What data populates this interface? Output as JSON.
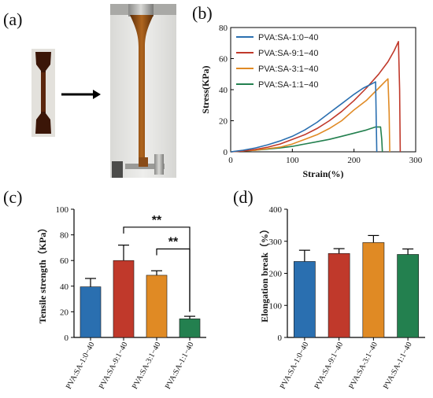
{
  "colors": {
    "blue": "#2a6fb0",
    "red": "#c0392b",
    "orange": "#e08a24",
    "green": "#23804f"
  },
  "panels": {
    "a": "(a)",
    "b": "(b)",
    "c": "(c)",
    "d": "(d)"
  },
  "chart_data": [
    {
      "panel": "(b)",
      "type": "line",
      "xlabel": "Strain(%)",
      "ylabel": "Stress(KPa)",
      "xlim": [
        0,
        300
      ],
      "ylim": [
        0,
        80
      ],
      "xticks": [
        "0",
        "100",
        "200",
        "300"
      ],
      "yticks": [
        "0",
        "20",
        "40",
        "60",
        "80"
      ],
      "grid": false,
      "legend": "top-left",
      "series": [
        {
          "name": "PVA:SA-1:0−40",
          "color": "#2a6fb0",
          "x": [
            0,
            20,
            40,
            60,
            80,
            100,
            120,
            140,
            160,
            180,
            200,
            215,
            225,
            230,
            235,
            236,
            237
          ],
          "y": [
            0,
            1,
            2.5,
            4.5,
            7,
            10,
            14,
            19,
            25,
            31,
            37,
            41,
            43,
            44,
            45,
            20,
            0
          ]
        },
        {
          "name": "PVA:SA-9:1−40",
          "color": "#c0392b",
          "x": [
            0,
            20,
            40,
            60,
            80,
            100,
            120,
            140,
            160,
            180,
            200,
            220,
            240,
            255,
            265,
            272,
            274,
            275
          ],
          "y": [
            0,
            0.5,
            1.5,
            3,
            5,
            8,
            11,
            15,
            20,
            26,
            33,
            41,
            50,
            58,
            65,
            71,
            40,
            0
          ]
        },
        {
          "name": "PVA:SA-3:1−40",
          "color": "#e08a24",
          "x": [
            0,
            40,
            80,
            100,
            120,
            140,
            160,
            180,
            200,
            220,
            240,
            250,
            255,
            257,
            258
          ],
          "y": [
            0,
            1,
            3,
            5,
            8,
            11,
            15,
            20,
            27,
            33,
            41,
            45,
            47,
            25,
            0
          ]
        },
        {
          "name": "PVA:SA-1:1−40",
          "color": "#23804f",
          "x": [
            0,
            40,
            80,
            100,
            120,
            140,
            160,
            180,
            200,
            220,
            235,
            243,
            245,
            246
          ],
          "y": [
            0,
            1,
            2.5,
            3.5,
            5,
            6.5,
            8,
            10,
            12,
            14,
            16,
            16,
            8,
            0
          ]
        }
      ]
    },
    {
      "panel": "(c)",
      "type": "bar",
      "ylabel": "Tensile strength（KPa）",
      "ylim": [
        0,
        100
      ],
      "yticks": [
        "0",
        "20",
        "40",
        "60",
        "80",
        "100"
      ],
      "categories": [
        "PVA:SA-1:0−40",
        "PVA:SA-9:1−40",
        "PVA:SA-3:1−40",
        "PVA:SA-1:1−40"
      ],
      "values": [
        39.5,
        60,
        48.5,
        14.5
      ],
      "errors": [
        6.5,
        12,
        3.5,
        2
      ],
      "colors": [
        "#2a6fb0",
        "#c0392b",
        "#e08a24",
        "#23804f"
      ],
      "significance": [
        {
          "from": 1,
          "to": 3,
          "label": "**"
        },
        {
          "from": 2,
          "to": 3,
          "label": "**"
        }
      ]
    },
    {
      "panel": "(d)",
      "type": "bar",
      "ylabel": "Elongation break（%）",
      "ylim": [
        0,
        400
      ],
      "yticks": [
        "0",
        "100",
        "200",
        "300",
        "400"
      ],
      "categories": [
        "PVA:SA-1:0−40",
        "PVA:SA-9:1−40",
        "PVA:SA-3:1−40",
        "PVA:SA-1:1−40"
      ],
      "values": [
        237,
        262,
        296,
        259
      ],
      "errors": [
        35,
        15,
        22,
        17
      ],
      "colors": [
        "#2a6fb0",
        "#c0392b",
        "#e08a24",
        "#23804f"
      ]
    }
  ]
}
